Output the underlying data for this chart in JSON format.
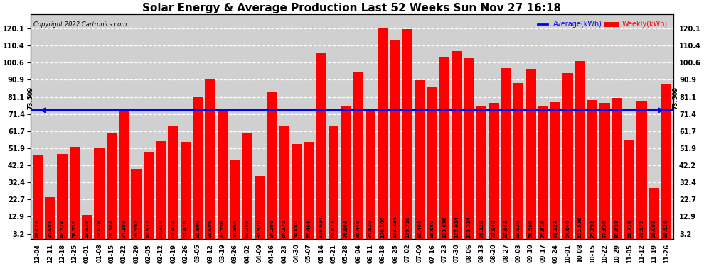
{
  "title": "Solar Energy & Average Production Last 52 Weeks Sun Nov 27 16:18",
  "copyright": "Copyright 2022 Cartronics.com",
  "average_value": 73.509,
  "bar_color": "#ff0000",
  "average_line_color": "#0000ff",
  "background_color": "#ffffff",
  "plot_bg_color": "#d0d0d0",
  "legend_avg_color": "#0000ff",
  "legend_weekly_color": "#ff0000",
  "yticks": [
    3.2,
    12.9,
    22.7,
    32.4,
    42.2,
    51.9,
    61.7,
    71.4,
    81.1,
    90.9,
    100.6,
    110.4,
    120.1
  ],
  "ymax": 128,
  "categories": [
    "12-04",
    "12-11",
    "12-18",
    "12-25",
    "01-01",
    "01-08",
    "01-15",
    "01-22",
    "01-29",
    "02-05",
    "02-12",
    "02-19",
    "02-26",
    "03-05",
    "03-12",
    "03-19",
    "03-26",
    "04-02",
    "04-09",
    "04-16",
    "04-23",
    "04-30",
    "05-07",
    "05-14",
    "05-21",
    "05-28",
    "06-04",
    "06-11",
    "06-18",
    "06-25",
    "07-02",
    "07-09",
    "07-16",
    "07-23",
    "07-30",
    "08-06",
    "08-13",
    "08-20",
    "08-27",
    "09-03",
    "09-10",
    "09-17",
    "09-24",
    "10-01",
    "10-08",
    "10-15",
    "10-22",
    "10-29",
    "11-05",
    "11-12",
    "11-19",
    "11-26"
  ],
  "values": [
    48.024,
    24.084,
    48.524,
    52.552,
    13.828,
    52.028,
    60.184,
    74.188,
    39.992,
    49.912,
    55.72,
    64.424,
    55.476,
    80.9,
    91.096,
    73.596,
    44.864,
    60.288,
    35.92,
    84.296,
    64.372,
    54.08,
    55.464,
    106.024,
    64.672,
    75.904,
    95.448,
    74.62,
    120.1,
    113.224,
    119.72,
    90.464,
    86.68,
    103.656,
    107.024,
    103.224,
    76.128,
    77.84,
    97.648,
    89.02,
    96.908,
    75.616,
    78.224,
    94.64,
    101.536,
    79.292,
    77.636,
    80.628,
    56.716,
    78.572,
    29.088,
    88.528
  ]
}
